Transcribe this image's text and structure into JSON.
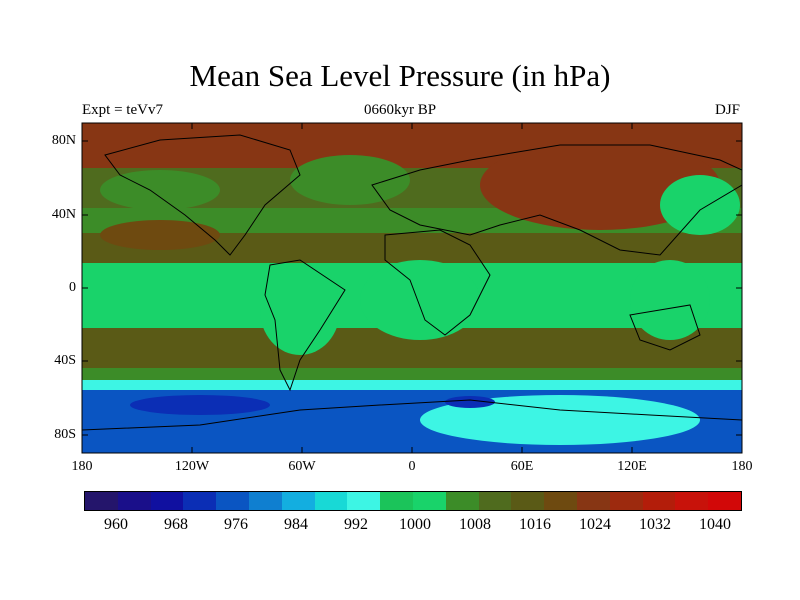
{
  "title": "Mean Sea Level Pressure (in hPa)",
  "subtitle_left": "Expt = teVv7",
  "subtitle_center": "0660kyr BP",
  "subtitle_right": "DJF",
  "y_ticks": [
    "80N",
    "40N",
    "0",
    "40S",
    "80S"
  ],
  "x_ticks": [
    "180",
    "120W",
    "60W",
    "0",
    "60E",
    "120E",
    "180"
  ],
  "colorbar": {
    "labels": [
      "960",
      "968",
      "976",
      "984",
      "992",
      "1000",
      "1008",
      "1016",
      "1024",
      "1032",
      "1040"
    ],
    "colors": [
      "#24156b",
      "#1a0f8a",
      "#1010a0",
      "#0b2eb5",
      "#0a55c2",
      "#0f7fd0",
      "#13aee0",
      "#18d9d6",
      "#3df5e4",
      "#1bc45a",
      "#19d36a",
      "#3c8c28",
      "#4f6b1e",
      "#5a5a16",
      "#6e4a10",
      "#873614",
      "#9d2a0e",
      "#b31d0a",
      "#c8120a",
      "#d20808"
    ]
  },
  "chart_data": {
    "type": "heatmap",
    "title": "Mean Sea Level Pressure (in hPa)",
    "units": "hPa",
    "x_range": [
      -180,
      180
    ],
    "y_range": [
      -90,
      90
    ],
    "colorbar_levels": [
      960,
      964,
      968,
      972,
      976,
      980,
      984,
      988,
      992,
      996,
      1000,
      1004,
      1008,
      1012,
      1016,
      1020,
      1024,
      1028,
      1032,
      1036,
      1040
    ],
    "experiment": "teVv7",
    "period": "0660kyr BP",
    "season": "DJF"
  }
}
